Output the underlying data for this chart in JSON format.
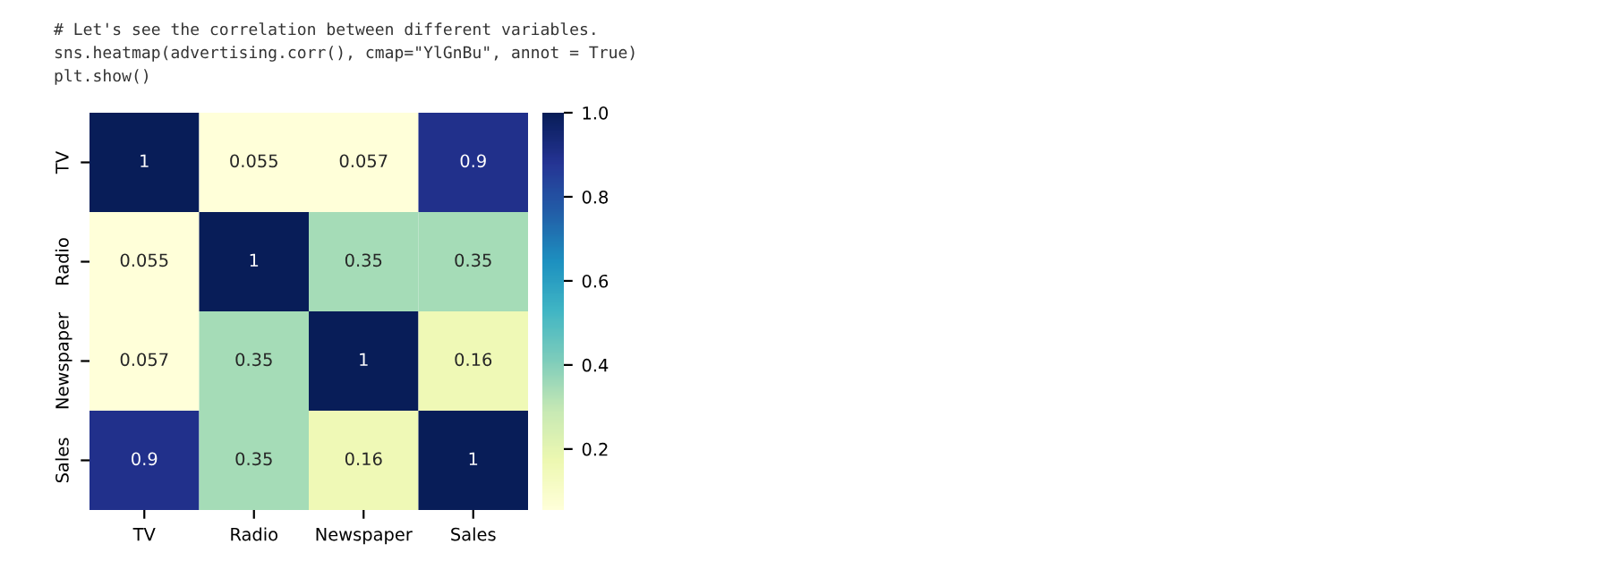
{
  "chart_data": {
    "type": "heatmap",
    "categories": [
      "TV",
      "Radio",
      "Newspaper",
      "Sales"
    ],
    "y_categories": [
      "TV",
      "Radio",
      "Newspaper",
      "Sales"
    ],
    "cells": [
      [
        1,
        0.055,
        0.057,
        0.9
      ],
      [
        0.055,
        1,
        0.35,
        0.35
      ],
      [
        0.057,
        0.35,
        1,
        0.16
      ],
      [
        0.9,
        0.35,
        0.16,
        1
      ]
    ],
    "clim": [
      0.055,
      1
    ],
    "cticks": [
      0.2,
      0.4,
      0.6,
      0.8,
      {
        "value": 1,
        "label": "1.0"
      }
    ],
    "data_labels": true,
    "annotations": [
      "# Let's see the correlation between different variables.",
      "sns.heatmap(advertising.corr(), cmap=\"YlGnBu\", annot = True)",
      "plt.show()"
    ]
  }
}
